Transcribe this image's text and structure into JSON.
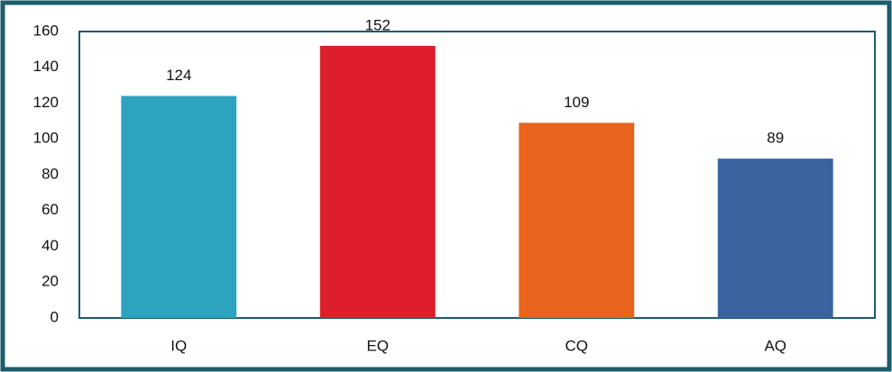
{
  "chart_data": {
    "type": "bar",
    "categories": [
      "IQ",
      "EQ",
      "CQ",
      "AQ"
    ],
    "values": [
      124,
      152,
      109,
      89
    ],
    "colors": [
      "#2ea3c0",
      "#dc1f2a",
      "#e8641e",
      "#3a64a0"
    ],
    "ylim": [
      0,
      160
    ],
    "yticks": [
      0,
      20,
      40,
      60,
      80,
      100,
      120,
      140,
      160
    ],
    "grid": false
  }
}
